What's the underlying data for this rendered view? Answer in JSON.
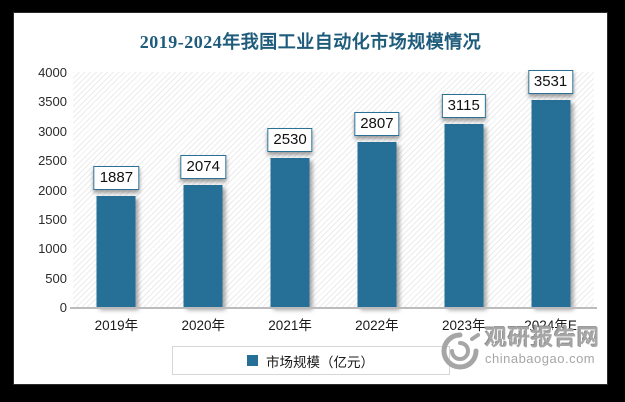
{
  "title": "2019-2024年我国工业自动化市场规模情况",
  "chart_data": {
    "type": "bar",
    "categories": [
      "2019年",
      "2020年",
      "2021年",
      "2022年",
      "2023年",
      "2024年E"
    ],
    "values": [
      1887,
      2074,
      2530,
      2807,
      3115,
      3531
    ],
    "series": [
      {
        "name": "市场规模（亿元）",
        "values": [
          1887,
          2074,
          2530,
          2807,
          3115,
          3531
        ]
      }
    ],
    "title": "2019-2024年我国工业自动化市场规模情况",
    "xlabel": "",
    "ylabel": "",
    "ylim": [
      0,
      4000
    ],
    "yticks": [
      0,
      500,
      1000,
      1500,
      2000,
      2500,
      3000,
      3500,
      4000
    ],
    "grid": false,
    "legend_position": "bottom",
    "data_labels": true,
    "plot_background": "diagonal-hatch"
  },
  "legend": {
    "label": "市场规模（亿元）"
  },
  "watermark": {
    "site_name": "观研报告网",
    "site_url": "chinabaogao.com",
    "logo": "spiral-logo-icon"
  },
  "colors": {
    "bar": "#266f96",
    "title_text": "#1f5c7c",
    "axis_line": "#bcbcbc",
    "value_box_border": "#2b7096",
    "watermark_gray": "#a6a6a6",
    "frame_background": "#000000",
    "panel_background": "#ffffff"
  }
}
